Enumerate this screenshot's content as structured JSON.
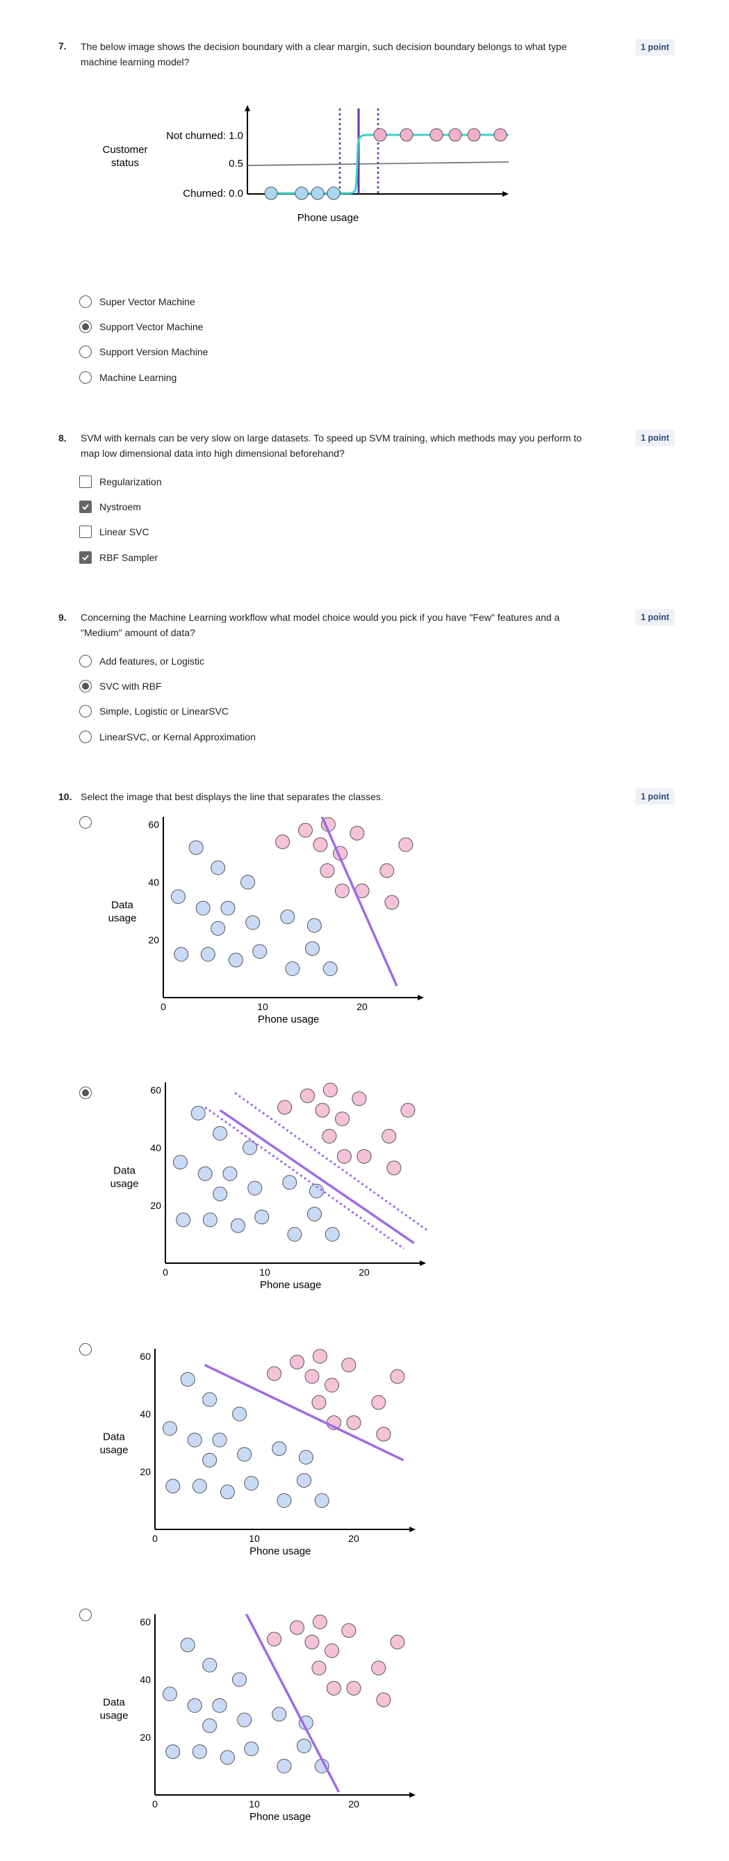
{
  "q7": {
    "number": "7.",
    "text": "The below image shows the decision boundary with a clear margin, such decision boundary belongs to what type machine learning model?",
    "points": "1 point",
    "figure": {
      "y_title_line1": "Customer",
      "y_title_line2": "status",
      "tick_top": "Not churned: 1.0",
      "tick_mid": "0.5",
      "tick_bottom": "Churned: 0.0",
      "xlabel": "Phone usage"
    },
    "options": [
      {
        "label": "Super Vector Machine",
        "selected": false
      },
      {
        "label": "Support Vector Machine",
        "selected": true
      },
      {
        "label": "Support Version Machine",
        "selected": false
      },
      {
        "label": "Machine Learning",
        "selected": false
      }
    ]
  },
  "q8": {
    "number": "8.",
    "text": "SVM with kernals can be very slow on large datasets. To speed up SVM training, which methods may you perform to map low dimensional data into high dimensional beforehand?",
    "points": "1 point",
    "options": [
      {
        "label": "Regularization",
        "checked": false
      },
      {
        "label": "Nystroem",
        "checked": true
      },
      {
        "label": "Linear SVC",
        "checked": false
      },
      {
        "label": "RBF Sampler",
        "checked": true
      }
    ]
  },
  "q9": {
    "number": "9.",
    "text": "Concerning the Machine Learning workflow what model choice would you pick if you have \"Few\" features and a \"Medium\" amount of data?",
    "points": "1 point",
    "options": [
      {
        "label": "Add features, or Logistic",
        "selected": false
      },
      {
        "label": "SVC with RBF",
        "selected": true
      },
      {
        "label": "Simple, Logistic or LinearSVC",
        "selected": false
      },
      {
        "label": "LinearSVC, or Kernal Approximation",
        "selected": false
      }
    ]
  },
  "q10": {
    "number": "10.",
    "text": "Select the image that best displays the line that separates the classes.",
    "points": "1 point",
    "chart_labels": {
      "xlabel": "Phone usage",
      "ylabel_line1": "Data",
      "ylabel_line2": "usage",
      "xticks": [
        "0",
        "10",
        "20"
      ],
      "yticks": [
        "20",
        "40",
        "60"
      ]
    },
    "choices": [
      {
        "selected": false
      },
      {
        "selected": true
      },
      {
        "selected": false
      },
      {
        "selected": false
      }
    ]
  },
  "colors": {
    "accent_purple": "#9d6be8",
    "dark_purple": "#6a2fa0",
    "teal": "#3ed1c6",
    "blue_point": "#c9daf7",
    "pink_point": "#f5c2d8",
    "badge_bg": "#eef2f8",
    "badge_text": "#2d4a7a"
  },
  "chart_data": [
    {
      "type": "scatter",
      "title": "",
      "xlabel": "Phone usage",
      "ylabel": "Customer status",
      "y_ticks": [
        "Churned: 0.0",
        "0.5",
        "Not churned: 1.0"
      ],
      "series": [
        {
          "points": [
            [
              0.8,
              0
            ],
            [
              1.7,
              0
            ],
            [
              2.15,
              0
            ],
            [
              2.6,
              0
            ]
          ]
        },
        {
          "points": [
            [
              3.7,
              1
            ],
            [
              4.4,
              1
            ],
            [
              5.2,
              1
            ],
            [
              5.7,
              1
            ],
            [
              6.2,
              1
            ],
            [
              6.7,
              1
            ]
          ]
        }
      ]
    },
    {
      "type": "scatter",
      "title": "",
      "xlabel": "Phone usage",
      "ylabel": "Data usage",
      "xlim": [
        0,
        25
      ],
      "ylim": [
        0,
        63
      ],
      "series": [
        {
          "points": [
            [
              3.3,
              52
            ],
            [
              1.5,
              35
            ],
            [
              4,
              31
            ],
            [
              6.5,
              31
            ],
            [
              5.5,
              45
            ],
            [
              8.5,
              40
            ],
            [
              5.5,
              24
            ],
            [
              9,
              26
            ],
            [
              12.5,
              28
            ],
            [
              15.2,
              25
            ],
            [
              1.8,
              15
            ],
            [
              4.5,
              15
            ],
            [
              7.3,
              13
            ],
            [
              9.7,
              16
            ],
            [
              13,
              10
            ],
            [
              15,
              17
            ],
            [
              16.8,
              10
            ]
          ]
        },
        {
          "points": [
            [
              12,
              54
            ],
            [
              14.3,
              58
            ],
            [
              16.6,
              60
            ],
            [
              19.5,
              57
            ],
            [
              24.4,
              53
            ],
            [
              15.8,
              53
            ],
            [
              17.8,
              50
            ],
            [
              16.5,
              44
            ],
            [
              18,
              37
            ],
            [
              20,
              37
            ],
            [
              22.5,
              44
            ],
            [
              23,
              33
            ]
          ]
        }
      ]
    }
  ]
}
